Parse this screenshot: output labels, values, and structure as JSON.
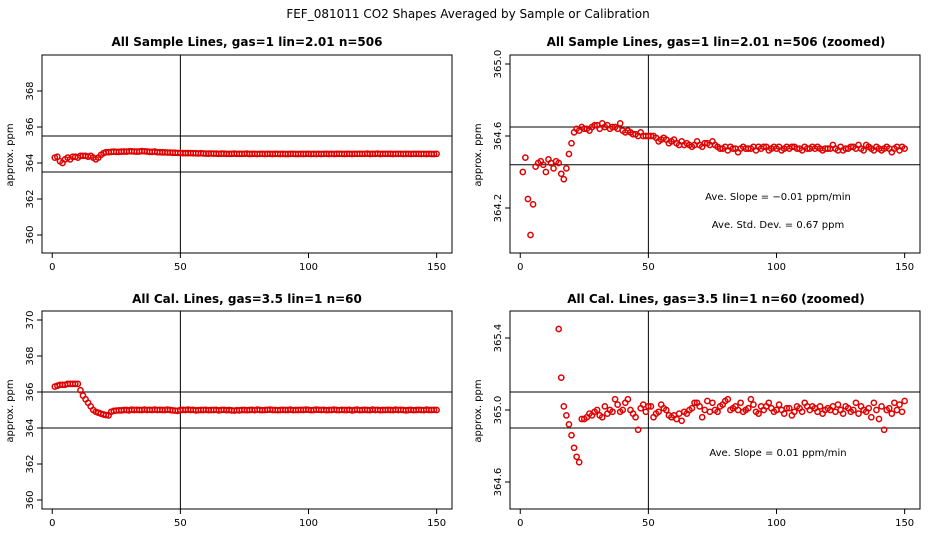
{
  "figure": {
    "suptitle": "FEF_081011  CO2 Shapes Averaged by Sample or Calibration"
  },
  "chart_data": [
    {
      "type": "scatter",
      "title": "All Sample Lines, gas=1 lin=2.01 n=506",
      "xlabel": "",
      "ylabel": "approx. ppm",
      "xlim": [
        -4,
        156
      ],
      "ylim": [
        359,
        370
      ],
      "xticks": [
        0,
        50,
        100,
        150
      ],
      "yticks": [
        360,
        362,
        364,
        366,
        368
      ],
      "ytick_labels": [
        "360",
        "362",
        "364",
        "366",
        "368"
      ],
      "vline": 50,
      "hlines": [
        363.5,
        365.5
      ],
      "marker_color": "#e00000",
      "annotations": [],
      "x": [
        1,
        2,
        3,
        4,
        5,
        6,
        7,
        8,
        9,
        10,
        11,
        12,
        13,
        14,
        15,
        16,
        17,
        18,
        19,
        20,
        21,
        22,
        23,
        24,
        25,
        26,
        27,
        28,
        29,
        30,
        31,
        32,
        33,
        34,
        35,
        36,
        37,
        38,
        39,
        40,
        41,
        42,
        43,
        44,
        45,
        46,
        47,
        48,
        49,
        50,
        51,
        52,
        53,
        54,
        55,
        56,
        57,
        58,
        59,
        60,
        61,
        62,
        63,
        64,
        65,
        66,
        67,
        68,
        69,
        70,
        71,
        72,
        73,
        74,
        75,
        76,
        77,
        78,
        79,
        80,
        81,
        82,
        83,
        84,
        85,
        86,
        87,
        88,
        89,
        90,
        91,
        92,
        93,
        94,
        95,
        96,
        97,
        98,
        99,
        100,
        101,
        102,
        103,
        104,
        105,
        106,
        107,
        108,
        109,
        110,
        111,
        112,
        113,
        114,
        115,
        116,
        117,
        118,
        119,
        120,
        121,
        122,
        123,
        124,
        125,
        126,
        127,
        128,
        129,
        130,
        131,
        132,
        133,
        134,
        135,
        136,
        137,
        138,
        139,
        140,
        141,
        142,
        143,
        144,
        145,
        146,
        147,
        148,
        149,
        150
      ],
      "y": [
        364.3,
        364.35,
        364.1,
        364.0,
        364.2,
        364.3,
        364.2,
        364.35,
        364.35,
        364.3,
        364.4,
        364.4,
        364.4,
        364.35,
        364.4,
        364.3,
        364.2,
        364.3,
        364.45,
        364.55,
        364.6,
        364.6,
        364.62,
        364.63,
        364.62,
        364.62,
        364.63,
        364.64,
        364.63,
        364.65,
        364.65,
        364.64,
        364.63,
        364.64,
        364.66,
        364.65,
        364.64,
        364.62,
        364.62,
        364.64,
        364.6,
        364.6,
        364.59,
        364.59,
        364.58,
        364.58,
        364.57,
        364.57,
        364.56,
        364.56,
        364.55,
        364.55,
        364.55,
        364.55,
        364.54,
        364.54,
        364.53,
        364.54,
        364.53,
        364.52,
        364.52,
        364.53,
        364.52,
        364.52,
        364.51,
        364.52,
        364.52,
        364.51,
        364.51,
        364.51,
        364.52,
        364.51,
        364.51,
        364.51,
        364.51,
        364.52,
        364.5,
        364.51,
        364.51,
        364.5,
        364.51,
        364.51,
        364.5,
        364.51,
        364.51,
        364.5,
        364.51,
        364.51,
        364.5,
        364.51,
        364.5,
        364.5,
        364.51,
        364.51,
        364.5,
        364.5,
        364.51,
        364.5,
        364.51,
        364.51,
        364.5,
        364.51,
        364.5,
        364.51,
        364.5,
        364.51,
        364.51,
        364.5,
        364.51,
        364.5,
        364.51,
        364.51,
        364.51,
        364.5,
        364.51,
        364.51,
        364.5,
        364.51,
        364.51,
        364.51,
        364.51,
        364.51,
        364.52,
        364.5,
        364.51,
        364.51,
        364.52,
        364.5,
        364.51,
        364.51,
        364.51,
        364.51,
        364.5,
        364.51,
        364.51,
        364.51,
        364.5,
        364.51,
        364.51,
        364.5,
        364.51,
        364.51,
        364.51,
        364.5,
        364.51,
        364.5,
        364.51,
        364.5,
        364.5,
        364.51
      ]
    },
    {
      "type": "scatter",
      "title": "All Sample Lines, gas=1 lin=2.01 n=506 (zoomed)",
      "xlabel": "",
      "ylabel": "approx. ppm",
      "xlim": [
        -4,
        156
      ],
      "ylim": [
        363.95,
        365.05
      ],
      "xticks": [
        0,
        50,
        100,
        150
      ],
      "yticks": [
        364.2,
        364.6,
        365.0
      ],
      "ytick_labels": [
        "364.2",
        "364.6",
        "365.0"
      ],
      "vline": 50,
      "hlines": [
        364.44,
        364.65
      ],
      "marker_color": "#e00000",
      "annotations": [
        "Ave. Slope =  −0.01  ppm/min",
        "Ave. Std. Dev. =  0.67  ppm"
      ],
      "x": [
        1,
        2,
        3,
        4,
        5,
        6,
        7,
        8,
        9,
        10,
        11,
        12,
        13,
        14,
        15,
        16,
        17,
        18,
        19,
        20,
        21,
        22,
        23,
        24,
        25,
        26,
        27,
        28,
        29,
        30,
        31,
        32,
        33,
        34,
        35,
        36,
        37,
        38,
        39,
        40,
        41,
        42,
        43,
        44,
        45,
        46,
        47,
        48,
        49,
        50,
        51,
        52,
        53,
        54,
        55,
        56,
        57,
        58,
        59,
        60,
        61,
        62,
        63,
        64,
        65,
        66,
        67,
        68,
        69,
        70,
        71,
        72,
        73,
        74,
        75,
        76,
        77,
        78,
        79,
        80,
        81,
        82,
        83,
        84,
        85,
        86,
        87,
        88,
        89,
        90,
        91,
        92,
        93,
        94,
        95,
        96,
        97,
        98,
        99,
        100,
        101,
        102,
        103,
        104,
        105,
        106,
        107,
        108,
        109,
        110,
        111,
        112,
        113,
        114,
        115,
        116,
        117,
        118,
        119,
        120,
        121,
        122,
        123,
        124,
        125,
        126,
        127,
        128,
        129,
        130,
        131,
        132,
        133,
        134,
        135,
        136,
        137,
        138,
        139,
        140,
        141,
        142,
        143,
        144,
        145,
        146,
        147,
        148,
        149,
        150
      ],
      "y": [
        364.4,
        364.48,
        364.25,
        364.05,
        364.22,
        364.43,
        364.45,
        364.46,
        364.44,
        364.4,
        364.47,
        364.45,
        364.42,
        364.46,
        364.45,
        364.39,
        364.36,
        364.42,
        364.5,
        364.56,
        364.62,
        364.64,
        364.63,
        364.65,
        364.64,
        364.64,
        364.63,
        364.65,
        364.66,
        364.66,
        364.64,
        364.67,
        364.65,
        364.66,
        364.64,
        364.65,
        364.65,
        364.64,
        364.67,
        364.63,
        364.62,
        364.63,
        364.62,
        364.61,
        364.61,
        364.6,
        364.62,
        364.6,
        364.6,
        364.6,
        364.6,
        364.6,
        364.59,
        364.57,
        364.58,
        364.59,
        364.58,
        364.56,
        364.57,
        364.58,
        364.56,
        364.55,
        364.57,
        364.55,
        364.56,
        364.55,
        364.54,
        364.55,
        364.57,
        364.55,
        364.54,
        364.56,
        364.56,
        364.55,
        364.57,
        364.55,
        364.54,
        364.53,
        364.53,
        364.54,
        364.52,
        364.54,
        364.53,
        364.53,
        364.51,
        364.53,
        364.54,
        364.53,
        364.53,
        364.53,
        364.54,
        364.52,
        364.54,
        364.53,
        364.54,
        364.54,
        364.52,
        364.53,
        364.54,
        364.53,
        364.54,
        364.52,
        364.53,
        364.54,
        364.53,
        364.54,
        364.54,
        364.53,
        364.53,
        364.52,
        364.54,
        364.53,
        364.53,
        364.54,
        364.53,
        364.54,
        364.53,
        364.52,
        364.53,
        364.53,
        364.53,
        364.55,
        364.53,
        364.52,
        364.54,
        364.52,
        364.53,
        364.53,
        364.54,
        364.54,
        364.53,
        364.55,
        364.53,
        364.52,
        364.55,
        364.54,
        364.53,
        364.52,
        364.54,
        364.53,
        364.52,
        364.53,
        364.54,
        364.53,
        364.51,
        364.53,
        364.54,
        364.52,
        364.54,
        364.53
      ]
    },
    {
      "type": "scatter",
      "title": "All Cal. Lines, gas=3.5 lin=1 n=60",
      "xlabel": "",
      "ylabel": "approx. ppm",
      "xlim": [
        -4,
        156
      ],
      "ylim": [
        359.5,
        370.5
      ],
      "xticks": [
        0,
        50,
        100,
        150
      ],
      "yticks": [
        360,
        362,
        364,
        366,
        368,
        370
      ],
      "ytick_labels": [
        "360",
        "362",
        "364",
        "366",
        "368",
        "370"
      ],
      "vline": 50,
      "hlines": [
        364.0,
        366.0
      ],
      "marker_color": "#e00000",
      "annotations": [],
      "x": [
        1,
        2,
        3,
        4,
        5,
        6,
        7,
        8,
        9,
        10,
        11,
        12,
        13,
        14,
        15,
        16,
        17,
        18,
        19,
        20,
        21,
        22,
        23,
        24,
        25,
        26,
        27,
        28,
        29,
        30,
        31,
        32,
        33,
        34,
        35,
        36,
        37,
        38,
        39,
        40,
        41,
        42,
        43,
        44,
        45,
        46,
        47,
        48,
        49,
        50,
        51,
        52,
        53,
        54,
        55,
        56,
        57,
        58,
        59,
        60,
        61,
        62,
        63,
        64,
        65,
        66,
        67,
        68,
        69,
        70,
        71,
        72,
        73,
        74,
        75,
        76,
        77,
        78,
        79,
        80,
        81,
        82,
        83,
        84,
        85,
        86,
        87,
        88,
        89,
        90,
        91,
        92,
        93,
        94,
        95,
        96,
        97,
        98,
        99,
        100,
        101,
        102,
        103,
        104,
        105,
        106,
        107,
        108,
        109,
        110,
        111,
        112,
        113,
        114,
        115,
        116,
        117,
        118,
        119,
        120,
        121,
        122,
        123,
        124,
        125,
        126,
        127,
        128,
        129,
        130,
        131,
        132,
        133,
        134,
        135,
        136,
        137,
        138,
        139,
        140,
        141,
        142,
        143,
        144,
        145,
        146,
        147,
        148,
        149,
        150
      ],
      "y": [
        366.3,
        366.35,
        366.4,
        366.4,
        366.4,
        366.45,
        366.45,
        366.45,
        366.45,
        366.45,
        366.1,
        365.8,
        365.6,
        365.4,
        365.2,
        365.0,
        364.9,
        364.85,
        364.8,
        364.75,
        364.72,
        364.7,
        364.9,
        364.95,
        364.97,
        364.98,
        364.98,
        365.0,
        365.0,
        364.98,
        365.02,
        365.0,
        365.01,
        365.0,
        365.0,
        365.02,
        365.0,
        365.01,
        365.0,
        365.02,
        365.0,
        365.01,
        365.0,
        365.0,
        365.02,
        365.0,
        364.98,
        364.97,
        364.95,
        365.0,
        365.01,
        365.0,
        365.02,
        365.0,
        365.01,
        364.98,
        364.99,
        365.0,
        365.0,
        365.01,
        364.99,
        365.0,
        365.0,
        365.01,
        364.98,
        365.0,
        365.01,
        364.99,
        365.0,
        364.98,
        364.97,
        364.99,
        364.98,
        365.0,
        365.0,
        364.99,
        365.0,
        365.01,
        364.99,
        365.02,
        365.0,
        364.99,
        365.0,
        365.01,
        365.02,
        365.0,
        365.0,
        364.99,
        365.0,
        365.01,
        365.0,
        365.0,
        365.02,
        364.99,
        365.0,
        365.0,
        365.01,
        365.0,
        365.02,
        365.01,
        364.99,
        365.0,
        365.02,
        365.01,
        365.0,
        365.01,
        364.99,
        365.0,
        365.0,
        365.02,
        365.0,
        364.99,
        365.01,
        365.0,
        365.0,
        365.01,
        364.98,
        365.0,
        365.02,
        364.99,
        365.0,
        365.01,
        365.0,
        364.99,
        365.02,
        365.0,
        365.01,
        364.99,
        365.0,
        365.0,
        365.01,
        365.0,
        364.99,
        365.02,
        365.0,
        365.01,
        365.0,
        364.98,
        365.0,
        365.01,
        364.99,
        365.0,
        365.01,
        365.0,
        364.99,
        365.02,
        365.0,
        365.0,
        365.01,
        365.0
      ]
    },
    {
      "type": "scatter",
      "title": "All Cal. Lines, gas=3.5 lin=1 n=60 (zoomed)",
      "xlabel": "",
      "ylabel": "approx. ppm",
      "xlim": [
        -4,
        156
      ],
      "ylim": [
        364.45,
        365.55
      ],
      "xticks": [
        0,
        50,
        100,
        150
      ],
      "yticks": [
        364.6,
        365.0,
        365.4
      ],
      "ytick_labels": [
        "364.6",
        "365.0",
        "365.4"
      ],
      "vline": 50,
      "hlines": [
        364.9,
        365.1
      ],
      "marker_color": "#e00000",
      "annotations": [
        "Ave. Slope =  0.01  ppm/min"
      ],
      "x": [
        15,
        16,
        17,
        18,
        19,
        20,
        21,
        22,
        23,
        24,
        25,
        26,
        27,
        28,
        29,
        30,
        31,
        32,
        33,
        34,
        35,
        36,
        37,
        38,
        39,
        40,
        41,
        42,
        43,
        44,
        45,
        46,
        47,
        48,
        49,
        50,
        51,
        52,
        53,
        54,
        55,
        56,
        57,
        58,
        59,
        60,
        61,
        62,
        63,
        64,
        65,
        66,
        67,
        68,
        69,
        70,
        71,
        72,
        73,
        74,
        75,
        76,
        77,
        78,
        79,
        80,
        81,
        82,
        83,
        84,
        85,
        86,
        87,
        88,
        89,
        90,
        91,
        92,
        93,
        94,
        95,
        96,
        97,
        98,
        99,
        100,
        101,
        102,
        103,
        104,
        105,
        106,
        107,
        108,
        109,
        110,
        111,
        112,
        113,
        114,
        115,
        116,
        117,
        118,
        119,
        120,
        121,
        122,
        123,
        124,
        125,
        126,
        127,
        128,
        129,
        130,
        131,
        132,
        133,
        134,
        135,
        136,
        137,
        138,
        139,
        140,
        141,
        142,
        143,
        144,
        145,
        146,
        147,
        148,
        149,
        150
      ],
      "y": [
        365.45,
        365.18,
        365.02,
        364.97,
        364.92,
        364.86,
        364.79,
        364.74,
        364.71,
        364.95,
        364.95,
        364.96,
        364.98,
        364.97,
        364.99,
        365.0,
        364.97,
        364.96,
        365.02,
        364.98,
        365.0,
        364.99,
        365.06,
        365.03,
        364.99,
        365.0,
        365.04,
        365.06,
        365.0,
        364.98,
        364.96,
        364.89,
        365.01,
        365.03,
        364.99,
        365.02,
        365.02,
        364.96,
        364.98,
        364.99,
        365.03,
        365.01,
        365.0,
        364.97,
        364.96,
        364.97,
        364.95,
        364.98,
        364.94,
        364.99,
        364.98,
        365.0,
        365.01,
        365.04,
        365.04,
        365.02,
        364.96,
        365.0,
        365.05,
        364.99,
        365.04,
        365.0,
        364.99,
        365.02,
        365.03,
        365.05,
        365.06,
        365.0,
        365.01,
        365.02,
        365.0,
        365.04,
        364.99,
        365.0,
        365.01,
        365.06,
        365.03,
        364.99,
        364.98,
        365.02,
        365.0,
        365.02,
        365.04,
        365.01,
        364.99,
        365.0,
        365.03,
        365.0,
        364.98,
        365.01,
        365.01,
        364.97,
        364.99,
        365.02,
        365.01,
        364.99,
        365.04,
        365.02,
        365.0,
        365.02,
        365.01,
        364.99,
        365.02,
        364.98,
        365.0,
        365.01,
        365.0,
        365.02,
        364.99,
        365.03,
        365.0,
        364.98,
        365.02,
        365.01,
        364.99,
        365.0,
        365.04,
        364.98,
        365.02,
        365.0,
        364.99,
        365.01,
        364.96,
        365.04,
        365.0,
        364.95,
        365.02,
        364.89,
        365.0,
        365.01,
        364.98,
        365.04,
        365.0,
        365.03,
        364.99,
        365.05
      ]
    }
  ]
}
